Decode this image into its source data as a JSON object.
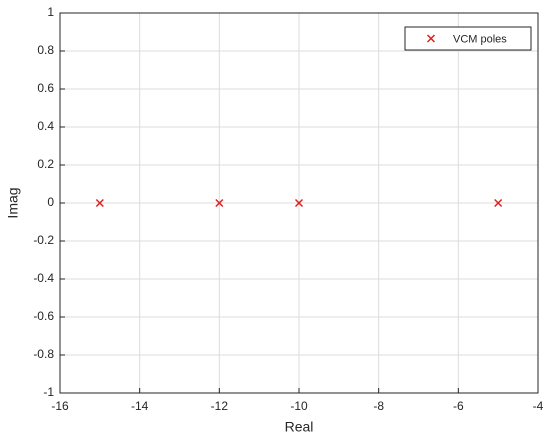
{
  "chart_data": {
    "type": "scatter",
    "x_label": "Real",
    "y_label": "Imag",
    "series": [
      {
        "name": "VCM poles",
        "color": "#e02020",
        "marker": "x",
        "x": [
          -15,
          -12,
          -10,
          -5
        ],
        "values": [
          0,
          0,
          0,
          0
        ]
      }
    ],
    "xlim": [
      -16,
      -4
    ],
    "xticks": [
      -16,
      -14,
      -12,
      -10,
      -8,
      -6,
      -4
    ],
    "ylim": [
      -1,
      1
    ],
    "yticks": [
      -1,
      -0.8,
      -0.6,
      -0.4,
      -0.2,
      0,
      0.2,
      0.4,
      0.6,
      0.8,
      1
    ],
    "grid": true,
    "legend": "northeast"
  }
}
